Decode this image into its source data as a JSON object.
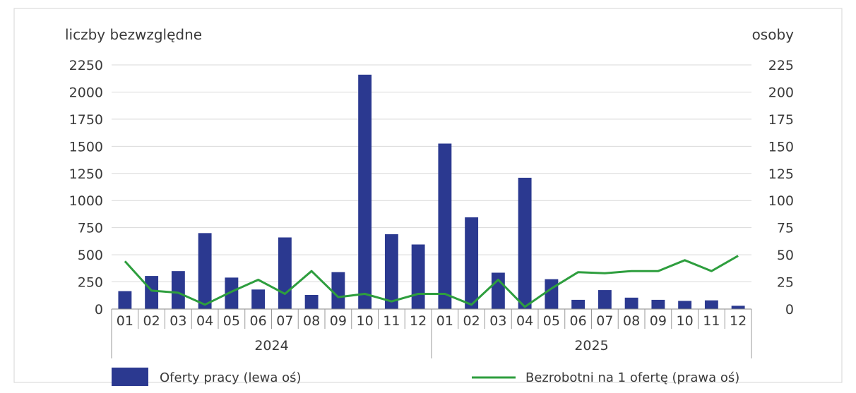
{
  "chart_data": {
    "type": "bar",
    "left_axis_label": "liczby bezwzględne",
    "right_axis_label": "osoby",
    "left_ylim": [
      0,
      2250
    ],
    "right_ylim": [
      0,
      225
    ],
    "left_ticks": [
      "0",
      "250",
      "500",
      "750",
      "1000",
      "1250",
      "1500",
      "1750",
      "2000",
      "2250"
    ],
    "right_ticks": [
      "0",
      "25",
      "50",
      "75",
      "100",
      "125",
      "150",
      "175",
      "200",
      "225"
    ],
    "categories": [
      "01",
      "02",
      "03",
      "04",
      "05",
      "06",
      "07",
      "08",
      "09",
      "10",
      "11",
      "12",
      "01",
      "02",
      "03",
      "04",
      "05",
      "06",
      "07",
      "08",
      "09",
      "10",
      "11",
      "12"
    ],
    "groups": [
      {
        "label": "2024",
        "count": 12
      },
      {
        "label": "2025",
        "count": 12
      }
    ],
    "grid": true,
    "legend_position": "bottom",
    "series": [
      {
        "name": "Oferty pracy (lewa oś)",
        "kind": "bar",
        "axis": "left",
        "color": "#2b3990",
        "values": [
          165,
          305,
          350,
          700,
          290,
          180,
          660,
          130,
          340,
          2160,
          690,
          595,
          1525,
          845,
          335,
          1210,
          275,
          85,
          175,
          105,
          85,
          75,
          80,
          30
        ]
      },
      {
        "name": "Bezrobotni na 1 ofertę (prawa oś)",
        "kind": "line",
        "axis": "right",
        "color": "#2e9e3e",
        "values": [
          44,
          17,
          15,
          4,
          16,
          27,
          14,
          35,
          11,
          14,
          7,
          14,
          14,
          4,
          27,
          2,
          19,
          34,
          33,
          35,
          35,
          45,
          35,
          49
        ]
      }
    ]
  }
}
